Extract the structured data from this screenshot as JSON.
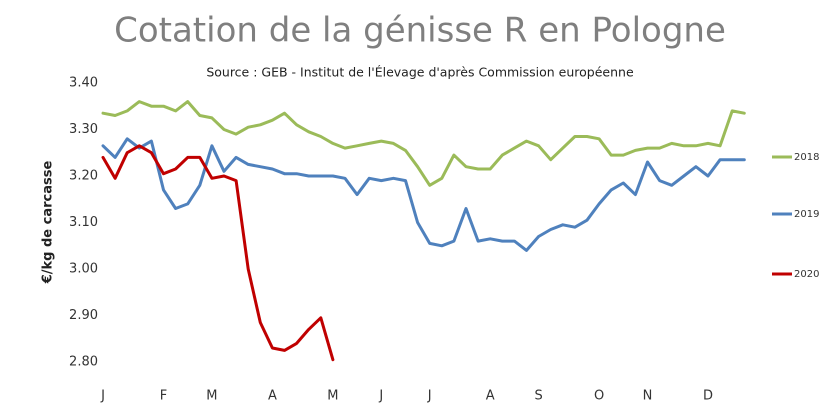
{
  "chart_data": {
    "type": "line",
    "title": "Cotation de la génisse R en Pologne",
    "subtitle": "Source : GEB - Institut de l'Élevage d'après Commission européenne",
    "y_label": "€/kg de carcasse",
    "categories": [
      "J",
      null,
      null,
      null,
      null,
      "F",
      null,
      null,
      null,
      "M",
      null,
      null,
      null,
      null,
      "A",
      null,
      null,
      null,
      null,
      "M",
      null,
      null,
      null,
      "J",
      null,
      null,
      null,
      "J",
      null,
      null,
      null,
      null,
      "A",
      null,
      null,
      null,
      "S",
      null,
      null,
      null,
      null,
      "O",
      null,
      null,
      null,
      "N",
      null,
      null,
      null,
      null,
      "D",
      null,
      null,
      null
    ],
    "series": [
      {
        "name": "2018",
        "color": "#9bbb59",
        "values": [
          3.335,
          3.33,
          3.34,
          3.36,
          3.35,
          3.35,
          3.34,
          3.36,
          3.33,
          3.325,
          3.3,
          3.29,
          3.305,
          3.31,
          3.32,
          3.335,
          3.31,
          3.295,
          3.285,
          3.27,
          3.26,
          3.265,
          3.27,
          3.275,
          3.27,
          3.255,
          3.22,
          3.18,
          3.195,
          3.245,
          3.22,
          3.215,
          3.215,
          3.245,
          3.26,
          3.275,
          3.265,
          3.235,
          3.26,
          3.285,
          3.285,
          3.28,
          3.245,
          3.245,
          3.255,
          3.26,
          3.26,
          3.27,
          3.265,
          3.265,
          3.27,
          3.265,
          3.34,
          3.335
        ]
      },
      {
        "name": "2019",
        "color": "#4f81bd",
        "values": [
          3.265,
          3.24,
          3.28,
          3.26,
          3.275,
          3.17,
          3.13,
          3.14,
          3.18,
          3.265,
          3.21,
          3.24,
          3.225,
          3.22,
          3.215,
          3.205,
          3.205,
          3.2,
          3.2,
          3.2,
          3.195,
          3.16,
          3.195,
          3.19,
          3.195,
          3.19,
          3.1,
          3.055,
          3.05,
          3.06,
          3.13,
          3.06,
          3.065,
          3.06,
          3.06,
          3.04,
          3.07,
          3.085,
          3.095,
          3.09,
          3.105,
          3.14,
          3.17,
          3.185,
          3.16,
          3.23,
          3.19,
          3.18,
          3.2,
          3.22,
          3.2,
          3.235,
          3.235,
          3.235
        ]
      },
      {
        "name": "2020",
        "color": "#c00000",
        "values": [
          3.24,
          3.195,
          3.25,
          3.265,
          3.25,
          3.205,
          3.215,
          3.24,
          3.24,
          3.195,
          3.2,
          3.19,
          3.0,
          2.885,
          2.83,
          2.825,
          2.84,
          2.87,
          2.895,
          2.805,
          null,
          null,
          null,
          null,
          null,
          null,
          null,
          null,
          null,
          null,
          null,
          null,
          null,
          null,
          null,
          null,
          null,
          null,
          null,
          null,
          null,
          null,
          null,
          null,
          null,
          null,
          null,
          null,
          null,
          null,
          null,
          null,
          null,
          null
        ]
      }
    ],
    "ylim": [
      2.78,
      3.42
    ],
    "yticks": [
      {
        "value": 2.8,
        "label": "2.80"
      },
      {
        "value": 2.9,
        "label": "2.90"
      },
      {
        "value": 3.0,
        "label": "3.00"
      },
      {
        "value": 3.1,
        "label": "3.10"
      },
      {
        "value": 3.2,
        "label": "3.20"
      },
      {
        "value": 3.3,
        "label": "3.30"
      },
      {
        "value": 3.4,
        "label": "3.40"
      }
    ],
    "grid": false,
    "legend": "right"
  }
}
